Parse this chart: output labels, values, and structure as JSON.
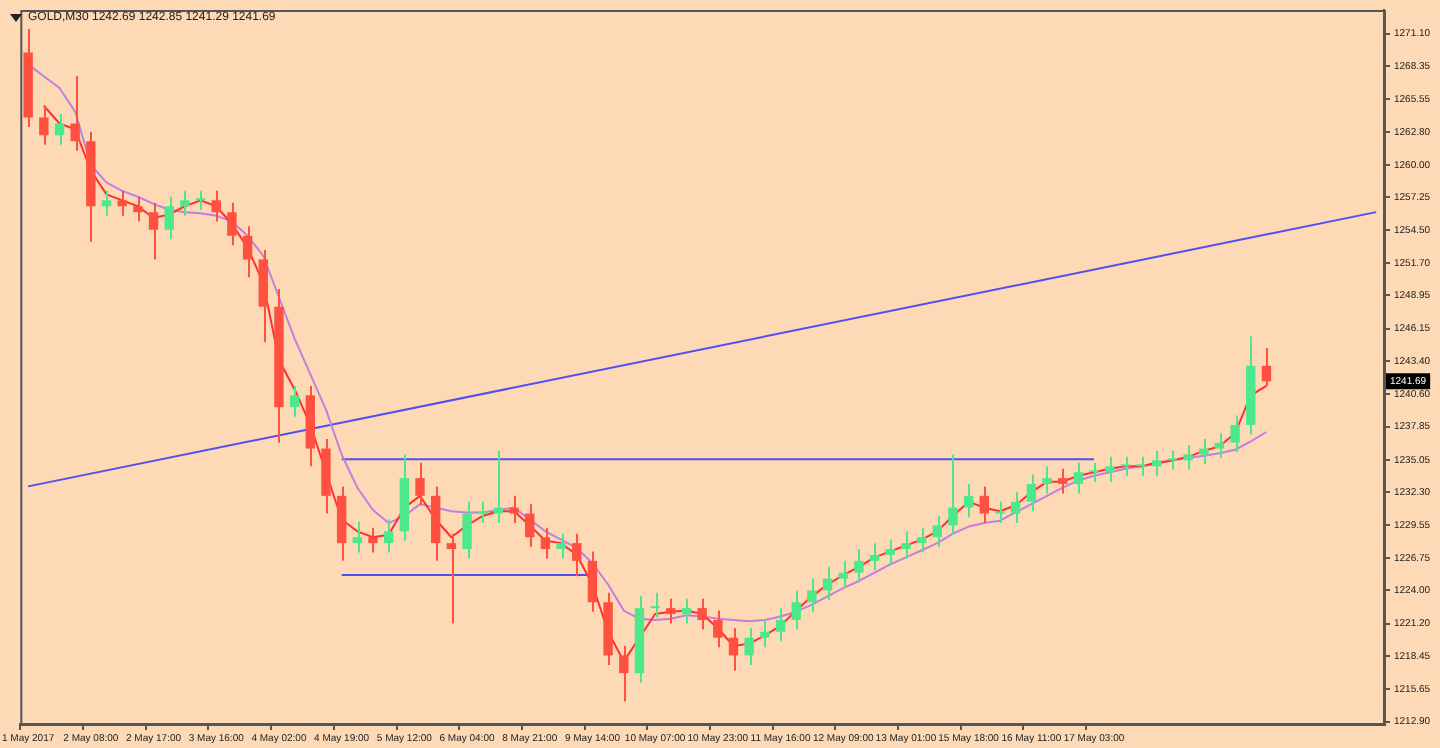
{
  "chart_data": {
    "type": "candlestick",
    "title": "GOLD,M30 1242.69 1242.85 1241.29 1241.69",
    "categories": [
      "1 May 2017",
      null,
      null,
      null,
      "2 May 08:00",
      null,
      null,
      null,
      "2 May 17:00",
      null,
      null,
      null,
      "3 May 16:00",
      null,
      null,
      null,
      "4 May 02:00",
      null,
      null,
      null,
      "4 May 19:00",
      null,
      null,
      null,
      "5 May 12:00",
      null,
      null,
      null,
      "6 May 04:00",
      null,
      null,
      null,
      "8 May 21:00",
      null,
      null,
      null,
      "9 May 14:00",
      null,
      null,
      null,
      "10 May 07:00",
      null,
      null,
      null,
      "10 May 23:00",
      null,
      null,
      null,
      "11 May 16:00",
      null,
      null,
      null,
      "12 May 09:00",
      null,
      null,
      null,
      "13 May 01:00",
      null,
      null,
      null,
      "15 May 18:00",
      null,
      null,
      null,
      "16 May 11:00",
      null,
      null,
      null,
      "17 May 03:00",
      null,
      null,
      null,
      null,
      null,
      null,
      null,
      null,
      null,
      null,
      null,
      null,
      null,
      null,
      null,
      null,
      null,
      null
    ],
    "ohlc": [
      [
        1269.5,
        1271.5,
        1263.2,
        1264
      ],
      [
        1264,
        1265,
        1261.7,
        1262.5
      ],
      [
        1262.5,
        1264.3,
        1261.7,
        1263.5
      ],
      [
        1263.5,
        1267.5,
        1261.2,
        1262
      ],
      [
        1262,
        1262.8,
        1253.5,
        1256.5
      ],
      [
        1256.5,
        1257.8,
        1255.7,
        1257
      ],
      [
        1257,
        1257.8,
        1255.7,
        1256.5
      ],
      [
        1256.5,
        1257.3,
        1255.2,
        1256
      ],
      [
        1256,
        1256.8,
        1252,
        1254.5
      ],
      [
        1254.5,
        1257.3,
        1253.7,
        1256.5
      ],
      [
        1256.5,
        1257.8,
        1255.7,
        1257
      ],
      [
        1257,
        1257.8,
        1256.2,
        1257
      ],
      [
        1257,
        1257.8,
        1255.2,
        1256
      ],
      [
        1256,
        1256.8,
        1253.2,
        1254
      ],
      [
        1254,
        1254.8,
        1250.5,
        1252
      ],
      [
        1252,
        1252.8,
        1245,
        1248
      ],
      [
        1248,
        1249.5,
        1236.5,
        1239.5
      ],
      [
        1239.5,
        1241.3,
        1238.7,
        1240.5
      ],
      [
        1240.5,
        1241.3,
        1234.5,
        1236
      ],
      [
        1236,
        1236.8,
        1230.5,
        1232
      ],
      [
        1232,
        1232.8,
        1226.5,
        1228
      ],
      [
        1228,
        1229.8,
        1227.2,
        1228.5
      ],
      [
        1228.5,
        1229.3,
        1227.2,
        1228
      ],
      [
        1228,
        1230,
        1227.2,
        1229
      ],
      [
        1229,
        1235.5,
        1228.2,
        1233.5
      ],
      [
        1233.5,
        1234.8,
        1231.2,
        1232
      ],
      [
        1232,
        1232.8,
        1226.5,
        1228
      ],
      [
        1228,
        1228.8,
        1221.2,
        1227.5
      ],
      [
        1227.5,
        1231.5,
        1226.7,
        1230.5
      ],
      [
        1230.5,
        1231.5,
        1229.7,
        1230.5
      ],
      [
        1230.5,
        1235.8,
        1229.7,
        1231
      ],
      [
        1231,
        1232,
        1229.7,
        1230.5
      ],
      [
        1230.5,
        1231.3,
        1227.7,
        1228.5
      ],
      [
        1228.5,
        1229.3,
        1226.7,
        1227.5
      ],
      [
        1227.5,
        1228.8,
        1226.7,
        1228
      ],
      [
        1228,
        1228.8,
        1225.2,
        1226.5
      ],
      [
        1226.5,
        1227.3,
        1222.2,
        1223
      ],
      [
        1223,
        1223.8,
        1217.7,
        1218.5
      ],
      [
        1218.5,
        1219.3,
        1214.6,
        1217
      ],
      [
        1217,
        1223.5,
        1216.2,
        1222.5
      ],
      [
        1222.5,
        1223.8,
        1221.7,
        1222.5
      ],
      [
        1222.5,
        1223.3,
        1221.2,
        1222
      ],
      [
        1222,
        1223.3,
        1221.2,
        1222.5
      ],
      [
        1222.5,
        1223.3,
        1220.7,
        1221.5
      ],
      [
        1221.5,
        1222.3,
        1219.2,
        1220
      ],
      [
        1220,
        1220.8,
        1217.2,
        1218.5
      ],
      [
        1218.5,
        1220.8,
        1217.7,
        1220
      ],
      [
        1220,
        1221.5,
        1219.2,
        1220.5
      ],
      [
        1220.5,
        1222.5,
        1219.7,
        1221.5
      ],
      [
        1221.5,
        1224,
        1220.7,
        1223
      ],
      [
        1223,
        1225,
        1222.2,
        1224
      ],
      [
        1224,
        1226,
        1223.2,
        1225
      ],
      [
        1225,
        1226.5,
        1224.2,
        1225.5
      ],
      [
        1225.5,
        1227.5,
        1224.7,
        1226.5
      ],
      [
        1226.5,
        1228,
        1225.7,
        1227
      ],
      [
        1227,
        1228.3,
        1226.2,
        1227.5
      ],
      [
        1227.5,
        1229,
        1226.7,
        1228
      ],
      [
        1228,
        1229.3,
        1227.2,
        1228.5
      ],
      [
        1228.5,
        1230.3,
        1227.7,
        1229.5
      ],
      [
        1229.5,
        1235.5,
        1228.7,
        1231
      ],
      [
        1231,
        1233,
        1230.2,
        1232
      ],
      [
        1232,
        1232.8,
        1229.7,
        1230.5
      ],
      [
        1230.5,
        1231.5,
        1229.7,
        1230.5
      ],
      [
        1230.5,
        1232.3,
        1229.7,
        1231.5
      ],
      [
        1231.5,
        1233.8,
        1230.7,
        1233
      ],
      [
        1233,
        1234.5,
        1232.2,
        1233.5
      ],
      [
        1233.5,
        1234.3,
        1232.2,
        1233
      ],
      [
        1233,
        1234.8,
        1232.2,
        1234
      ],
      [
        1234,
        1234.8,
        1233.2,
        1234
      ],
      [
        1234,
        1235.3,
        1233.2,
        1234.5
      ],
      [
        1234.5,
        1235.3,
        1233.7,
        1234.5
      ],
      [
        1234.5,
        1235.3,
        1233.7,
        1234.5
      ],
      [
        1234.5,
        1235.8,
        1233.7,
        1235
      ],
      [
        1235,
        1235.8,
        1234.2,
        1235
      ],
      [
        1235,
        1236.3,
        1234.2,
        1235.5
      ],
      [
        1235.5,
        1236.8,
        1234.7,
        1236
      ],
      [
        1236,
        1237.3,
        1235.2,
        1236.5
      ],
      [
        1236.5,
        1238.8,
        1235.7,
        1238
      ],
      [
        1238,
        1245.5,
        1237.2,
        1243
      ],
      [
        1243,
        1244.5,
        1241.29,
        1241.69
      ],
      null,
      null,
      null,
      null,
      null,
      null,
      null
    ],
    "colors": [
      "#ff5040",
      "#ff5040",
      "#4ee88c",
      "#ff5040",
      "#ff5040",
      "#4ee88c",
      "#ff5040",
      "#ff5040",
      "#ff5040",
      "#4ee88c",
      "#4ee88c",
      "#4ee88c",
      "#ff5040",
      "#ff5040",
      "#ff5040",
      "#ff5040",
      "#ff5040",
      "#4ee88c",
      "#ff5040",
      "#ff5040",
      "#ff5040",
      "#4ee88c",
      "#ff5040",
      "#4ee88c",
      "#4ee88c",
      "#ff5040",
      "#ff5040",
      "#ff5040",
      "#4ee88c",
      "#4ee88c",
      "#4ee88c",
      "#ff5040",
      "#ff5040",
      "#ff5040",
      "#4ee88c",
      "#ff5040",
      "#ff5040",
      "#ff5040",
      "#ff5040",
      "#4ee88c",
      "#4ee88c",
      "#ff5040",
      "#4ee88c",
      "#ff5040",
      "#ff5040",
      "#ff5040",
      "#4ee88c",
      "#4ee88c",
      "#4ee88c",
      "#4ee88c",
      "#4ee88c",
      "#4ee88c",
      "#4ee88c",
      "#4ee88c",
      "#4ee88c",
      "#4ee88c",
      "#4ee88c",
      "#4ee88c",
      "#4ee88c",
      "#4ee88c",
      "#4ee88c",
      "#ff5040",
      "#4ee88c",
      "#4ee88c",
      "#4ee88c",
      "#4ee88c",
      "#ff5040",
      "#4ee88c",
      "#4ee88c",
      "#4ee88c",
      "#4ee88c",
      "#4ee88c",
      "#4ee88c",
      "#4ee88c",
      "#4ee88c",
      "#4ee88c",
      "#4ee88c",
      "#4ee88c",
      "#4ee88c",
      "#ff5040",
      null,
      null,
      null,
      null,
      null,
      null,
      null
    ],
    "series": [
      {
        "type": "line",
        "color": "#ff3030",
        "values": [
          null,
          1265,
          1263.5,
          1263,
          1259.5,
          1257.5,
          1257,
          1256.5,
          1255.5,
          1255.8,
          1256.5,
          1257,
          1256.5,
          1255,
          1253,
          1250,
          1243.5,
          1241,
          1238,
          1234,
          1230,
          1229,
          1228.5,
          1228.7,
          1231,
          1232,
          1230,
          1228.5,
          1229.5,
          1230.3,
          1230.7,
          1230.7,
          1229.5,
          1228.2,
          1228,
          1227,
          1224.5,
          1220.5,
          1218,
          1220,
          1222,
          1222.2,
          1222.3,
          1222,
          1220.8,
          1219.3,
          1219.5,
          1220.2,
          1221,
          1222.3,
          1223.5,
          1224.5,
          1225.3,
          1226,
          1226.8,
          1227.3,
          1227.8,
          1228.3,
          1229,
          1230.3,
          1231.5,
          1231,
          1230.7,
          1231.2,
          1232.3,
          1233.2,
          1233.2,
          1233.7,
          1234,
          1234.3,
          1234.5,
          1234.5,
          1234.8,
          1235,
          1235.3,
          1235.8,
          1236.2,
          1237.3,
          1240.5,
          1241.3,
          null,
          null,
          null,
          null,
          null,
          null,
          null
        ]
      },
      {
        "type": "line",
        "color": "#c080e0",
        "values": [
          1268.5,
          1267.5,
          1266.5,
          1264.5,
          1260,
          1258.5,
          1257.8,
          1257.3,
          1256.7,
          1256.2,
          1256,
          1255.9,
          1255.7,
          1255.2,
          1254,
          1252.3,
          1248.8,
          1245.3,
          1242.3,
          1239.3,
          1235.5,
          1232.7,
          1230.8,
          1229.7,
          1230.3,
          1231.3,
          1231,
          1230.7,
          1230.6,
          1230.6,
          1230.8,
          1231,
          1230,
          1229,
          1228.3,
          1227.6,
          1226.3,
          1224.5,
          1222.3,
          1221.6,
          1221.5,
          1221.6,
          1221.9,
          1221.8,
          1221.6,
          1221.5,
          1221.4,
          1221.5,
          1221.8,
          1222.2,
          1222.8,
          1223.5,
          1224.2,
          1224.8,
          1225.5,
          1226.2,
          1226.8,
          1227.4,
          1228,
          1228.8,
          1229.4,
          1229.7,
          1229.9,
          1230.6,
          1231.3,
          1232,
          1232.7,
          1233.3,
          1233.7,
          1234,
          1234.3,
          1234.5,
          1234.7,
          1235,
          1235.2,
          1235.4,
          1235.6,
          1235.9,
          1236.6,
          1237.4,
          null,
          null,
          null,
          null,
          null,
          null,
          null
        ]
      },
      {
        "type": "line",
        "color": "#5050f0",
        "values": [
          1232.8,
          null,
          null,
          null,
          null,
          null,
          null,
          null,
          null,
          null,
          null,
          null,
          null,
          null,
          null,
          null,
          null,
          null,
          null,
          null,
          null,
          null,
          null,
          null,
          null,
          null,
          null,
          null,
          null,
          null,
          null,
          null,
          null,
          null,
          null,
          null,
          null,
          null,
          null,
          null,
          null,
          null,
          null,
          null,
          null,
          null,
          null,
          null,
          null,
          null,
          null,
          null,
          null,
          null,
          null,
          null,
          null,
          null,
          null,
          null,
          null,
          null,
          null,
          null,
          null,
          null,
          null,
          null,
          null,
          null,
          null,
          null,
          null,
          null,
          null,
          null,
          null,
          null,
          null,
          null,
          null,
          null,
          null,
          null,
          null,
          null,
          1256
        ]
      },
      {
        "type": "line",
        "color": "#5050f0",
        "values": [
          null,
          null,
          null,
          null,
          null,
          null,
          null,
          null,
          null,
          null,
          null,
          null,
          null,
          null,
          null,
          null,
          null,
          null,
          null,
          null,
          1235.1,
          null,
          null,
          null,
          null,
          null,
          null,
          null,
          null,
          null,
          null,
          null,
          null,
          null,
          null,
          null,
          null,
          null,
          null,
          null,
          null,
          null,
          null,
          null,
          null,
          null,
          null,
          null,
          null,
          null,
          null,
          null,
          null,
          null,
          null,
          null,
          null,
          null,
          null,
          null,
          null,
          null,
          null,
          null,
          null,
          null,
          null,
          null,
          1235.1,
          null,
          null,
          null,
          null,
          null,
          null,
          null,
          null,
          null,
          null,
          null,
          null,
          null,
          null,
          null,
          null,
          null,
          null
        ]
      },
      {
        "type": "line",
        "color": "#5050f0",
        "values": [
          null,
          null,
          null,
          null,
          null,
          null,
          null,
          null,
          null,
          null,
          null,
          null,
          null,
          null,
          null,
          null,
          null,
          null,
          null,
          null,
          1225.3,
          null,
          null,
          null,
          null,
          null,
          null,
          null,
          null,
          null,
          null,
          null,
          null,
          null,
          null,
          null,
          1225.3,
          null,
          null,
          null,
          null,
          null,
          null,
          null,
          null,
          null,
          null,
          null,
          null,
          null,
          null,
          null,
          null,
          null,
          null,
          null,
          null,
          null,
          null,
          null,
          null,
          null,
          null,
          null,
          null,
          null,
          null,
          null,
          null,
          null,
          null,
          null,
          null,
          null,
          null,
          null,
          null,
          null,
          null,
          null,
          null,
          null,
          null,
          null,
          null,
          null,
          null
        ]
      }
    ],
    "ylim": [
      1212.7,
      1273.1
    ],
    "yticks": [
      {
        "value": 1212.9,
        "label": "1212.90"
      },
      1215.65,
      1218.45,
      {
        "value": 1221.2,
        "label": "1221.20"
      },
      {
        "value": 1224,
        "label": "1224.00"
      },
      1226.75,
      1229.55,
      {
        "value": 1232.3,
        "label": "1232.30"
      },
      1235.05,
      1237.85,
      {
        "value": 1240.6,
        "label": "1240.60"
      },
      {
        "value": 1243.4,
        "label": "1243.40"
      },
      1246.15,
      1248.95,
      {
        "value": 1251.7,
        "label": "1251.70"
      },
      {
        "value": 1254.5,
        "label": "1254.50"
      },
      1257.25,
      {
        "value": 1260,
        "label": "1260.00"
      },
      {
        "value": 1262.8,
        "label": "1262.80"
      },
      1265.55,
      1268.35,
      {
        "value": 1271.1,
        "label": "1271.10"
      }
    ],
    "annotations": [
      {
        "text": "1241.69",
        "y": 1241.69
      }
    ],
    "marker": "none",
    "line_style": "solid"
  }
}
